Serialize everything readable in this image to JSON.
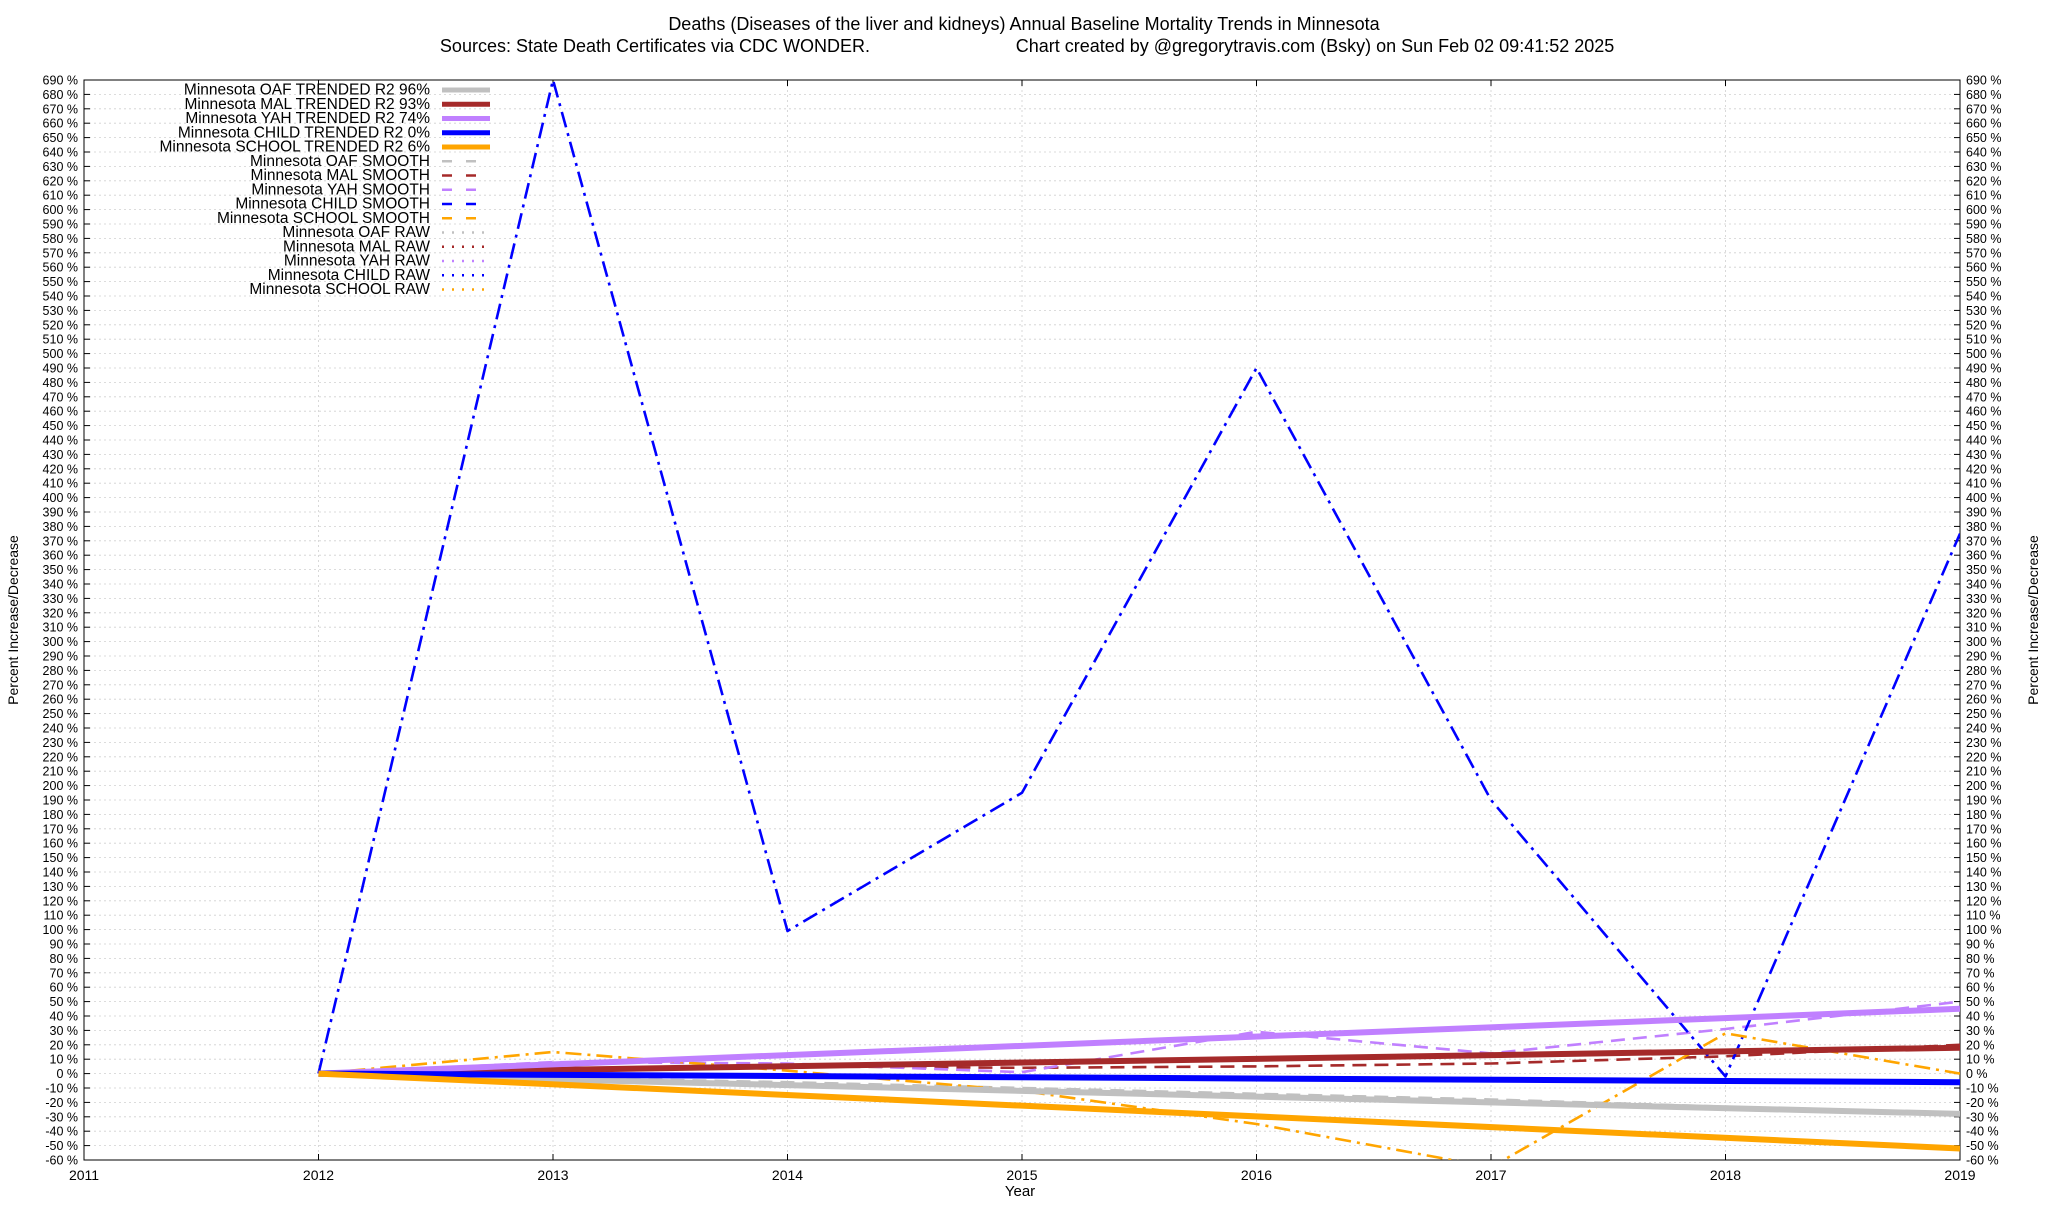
{
  "chart_data": {
    "type": "line",
    "title": "Deaths (Diseases of the liver and kidneys)  Annual Baseline Mortality Trends in Minnesota",
    "subtitle_left": "Sources: State Death Certificates via CDC WONDER.",
    "subtitle_right": "Chart created by @gregorytravis.com (Bsky) on Sun Feb 02 09:41:52 2025",
    "xlabel": "Year",
    "ylabel": "Percent Increase/Decrease",
    "y2label": "Percent Increase/Decrease",
    "xlim": [
      2011,
      2019
    ],
    "ylim": [
      -60,
      690
    ],
    "x_ticks": [
      2011,
      2012,
      2013,
      2014,
      2015,
      2016,
      2017,
      2018,
      2019
    ],
    "y_tick_step": 10,
    "y_tick_suffix": " %",
    "grid": true,
    "legend_position": "top-left",
    "series": [
      {
        "name": "Minnesota OAF TRENDED R2  96%",
        "style": "trend",
        "color": "#c0c0c0",
        "x": [
          2012,
          2019
        ],
        "y": [
          0,
          -28
        ]
      },
      {
        "name": "Minnesota MAL TRENDED R2  93%",
        "style": "trend",
        "color": "#a52a2a",
        "x": [
          2012,
          2019
        ],
        "y": [
          0,
          18
        ]
      },
      {
        "name": "Minnesota YAH TRENDED R2  74%",
        "style": "trend",
        "color": "#c080ff",
        "x": [
          2012,
          2019
        ],
        "y": [
          0,
          45
        ]
      },
      {
        "name": "Minnesota CHILD TRENDED R2   0%",
        "style": "trend",
        "color": "#0000ff",
        "x": [
          2012,
          2019
        ],
        "y": [
          0,
          -6
        ]
      },
      {
        "name": "Minnesota SCHOOL TRENDED R2   6%",
        "style": "trend",
        "color": "#ffa500",
        "x": [
          2012,
          2019
        ],
        "y": [
          0,
          -52
        ]
      },
      {
        "name": "Minnesota OAF SMOOTH",
        "style": "smooth",
        "color": "#c0c0c0",
        "x": [
          2012,
          2013,
          2014,
          2015,
          2016,
          2017,
          2018,
          2019
        ],
        "y": [
          0,
          -3,
          -6,
          -10,
          -14,
          -18,
          -23,
          -28
        ]
      },
      {
        "name": "Minnesota MAL SMOOTH",
        "style": "smooth",
        "color": "#a52a2a",
        "x": [
          2012,
          2013,
          2014,
          2015,
          2016,
          2017,
          2018,
          2019
        ],
        "y": [
          0,
          3,
          5,
          4,
          5,
          7,
          12,
          20
        ]
      },
      {
        "name": "Minnesota YAH SMOOTH",
        "style": "smooth",
        "color": "#c080ff",
        "x": [
          2012,
          2013,
          2014,
          2015,
          2016,
          2017,
          2018,
          2019
        ],
        "y": [
          0,
          8,
          7,
          1,
          29,
          14,
          31,
          50
        ]
      },
      {
        "name": "Minnesota CHILD SMOOTH",
        "style": "smooth",
        "color": "#0000ff",
        "x": [
          2012,
          2013,
          2014,
          2015,
          2016,
          2017,
          2018,
          2019
        ],
        "y": [
          0,
          690,
          99,
          195,
          490,
          190,
          -2,
          375
        ]
      },
      {
        "name": "Minnesota SCHOOL SMOOTH",
        "style": "smooth",
        "color": "#ffa500",
        "x": [
          2012,
          2013,
          2014,
          2015,
          2016,
          2017,
          2018,
          2019
        ],
        "y": [
          0,
          15,
          2,
          -12,
          -35,
          -65,
          28,
          0
        ]
      },
      {
        "name": "Minnesota OAF RAW",
        "style": "raw",
        "color": "#c0c0c0",
        "x": [],
        "y": []
      },
      {
        "name": "Minnesota MAL RAW",
        "style": "raw",
        "color": "#a52a2a",
        "x": [],
        "y": []
      },
      {
        "name": "Minnesota YAH RAW",
        "style": "raw",
        "color": "#c080ff",
        "x": [],
        "y": []
      },
      {
        "name": "Minnesota CHILD RAW",
        "style": "raw",
        "color": "#0000ff",
        "x": [],
        "y": []
      },
      {
        "name": "Minnesota SCHOOL RAW",
        "style": "raw",
        "color": "#ffa500",
        "x": [],
        "y": []
      }
    ]
  }
}
